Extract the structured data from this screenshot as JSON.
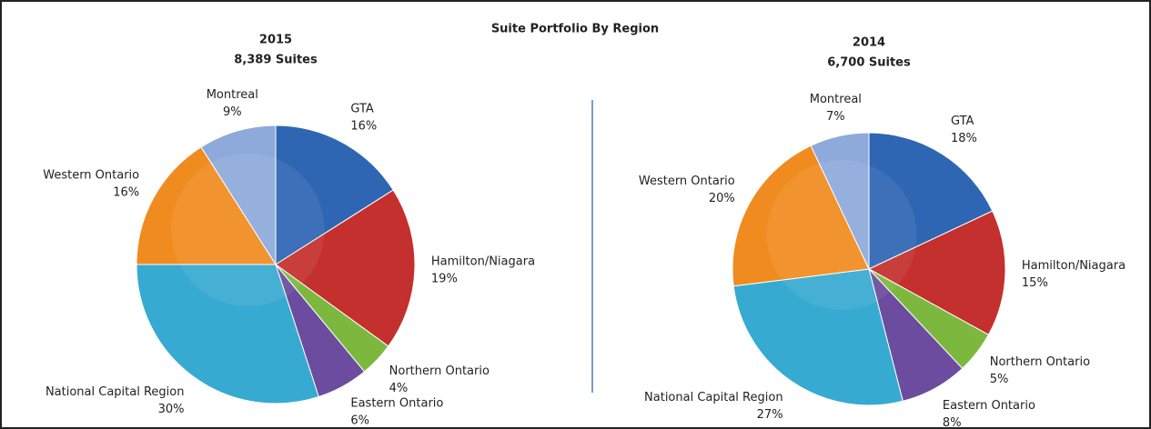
{
  "title": "Suite Portfolio By Region",
  "chart_data": [
    {
      "type": "pie",
      "title": "2015",
      "subtitle": "8,389 Suites",
      "categories": [
        "GTA",
        "Hamilton/Niagara",
        "Northern Ontario",
        "Eastern Ontario",
        "National Capital Region",
        "Western Ontario",
        "Montreal"
      ],
      "values": [
        16,
        19,
        4,
        6,
        30,
        16,
        9
      ],
      "value_labels": [
        "16%",
        "19%",
        "4%",
        "6%",
        "30%",
        "16%",
        "9%"
      ],
      "colors": [
        "#2f66b3",
        "#c3302d",
        "#7cb83e",
        "#6b4c9e",
        "#37aad1",
        "#f08b20",
        "#8eaadb"
      ]
    },
    {
      "type": "pie",
      "title": "2014",
      "subtitle": "6,700 Suites",
      "categories": [
        "GTA",
        "Hamilton/Niagara",
        "Northern Ontario",
        "Eastern Ontario",
        "National Capital Region",
        "Western Ontario",
        "Montreal"
      ],
      "values": [
        18,
        15,
        5,
        8,
        27,
        20,
        7
      ],
      "value_labels": [
        "18%",
        "15%",
        "5%",
        "8%",
        "27%",
        "20%",
        "7%"
      ],
      "colors": [
        "#2f66b3",
        "#c3302d",
        "#7cb83e",
        "#6b4c9e",
        "#37aad1",
        "#f08b20",
        "#8eaadb"
      ]
    }
  ]
}
